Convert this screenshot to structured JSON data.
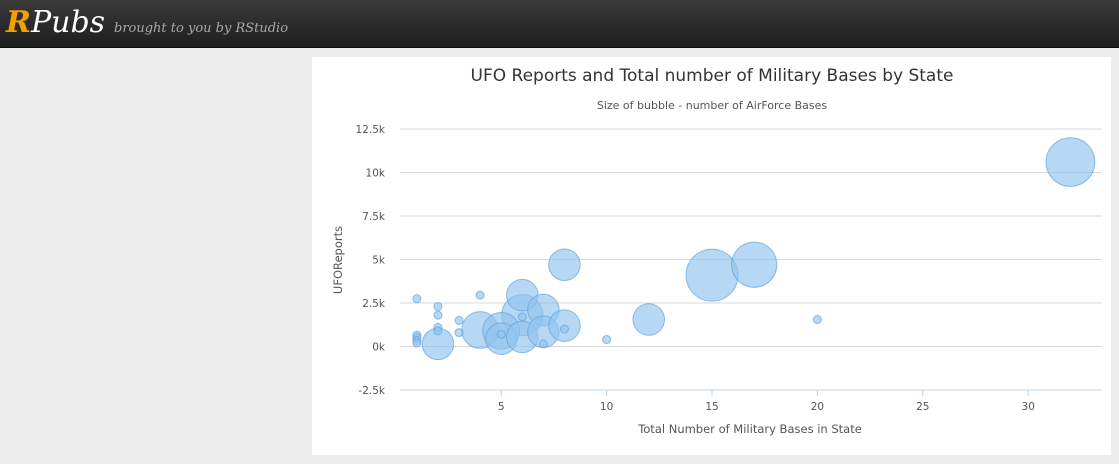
{
  "header": {
    "logo_r": "R",
    "logo_rest": "Pubs",
    "tagline": "brought to you by RStudio"
  },
  "colors": {
    "bubble_fill": "#90c3ee",
    "bubble_stroke": "#5fa2dd",
    "grid": "#d8d8d8",
    "axis": "#c0d0e0"
  },
  "chart_data": {
    "type": "scatter",
    "title": "UFO Reports and Total number of Military Bases by State",
    "subtitle": "Size of bubble - number of AirForce Bases",
    "xlabel": "Total Number of Military Bases in State",
    "ylabel": "UFOReports",
    "xlim": [
      0.2,
      33.5
    ],
    "ylim": [
      -2500,
      12500
    ],
    "xticks": [
      5,
      10,
      15,
      20,
      25,
      30
    ],
    "xtick_labels": [
      "5",
      "10",
      "15",
      "20",
      "25",
      "30"
    ],
    "yticks": [
      -2500,
      0,
      2500,
      5000,
      7500,
      10000,
      12500
    ],
    "ytick_labels": [
      "-2.5k",
      "0k",
      "2.5k",
      "5k",
      "7.5k",
      "10k",
      "12.5k"
    ],
    "grid": true,
    "legend": "none",
    "series": [
      {
        "points": [
          {
            "x": 32,
            "y": 10600,
            "z": 6
          },
          {
            "x": 15,
            "y": 4100,
            "z": 7
          },
          {
            "x": 17,
            "y": 4700,
            "z": 5
          },
          {
            "x": 8,
            "y": 4700,
            "z": 2
          },
          {
            "x": 6,
            "y": 2950,
            "z": 2
          },
          {
            "x": 6,
            "y": 1800,
            "z": 4
          },
          {
            "x": 7,
            "y": 2100,
            "z": 2
          },
          {
            "x": 4,
            "y": 950,
            "z": 3
          },
          {
            "x": 5,
            "y": 900,
            "z": 3
          },
          {
            "x": 5,
            "y": 450,
            "z": 2
          },
          {
            "x": 6,
            "y": 550,
            "z": 2
          },
          {
            "x": 7,
            "y": 850,
            "z": 2
          },
          {
            "x": 8,
            "y": 1200,
            "z": 2
          },
          {
            "x": 12,
            "y": 1550,
            "z": 2
          },
          {
            "x": 2,
            "y": 150,
            "z": 2
          },
          {
            "x": 1,
            "y": 2750,
            "z": 0
          },
          {
            "x": 2,
            "y": 2300,
            "z": 0
          },
          {
            "x": 2,
            "y": 1800,
            "z": 0
          },
          {
            "x": 2,
            "y": 1100,
            "z": 0
          },
          {
            "x": 2,
            "y": 900,
            "z": 0
          },
          {
            "x": 3,
            "y": 1500,
            "z": 0
          },
          {
            "x": 3,
            "y": 800,
            "z": 0
          },
          {
            "x": 4,
            "y": 2950,
            "z": 0
          },
          {
            "x": 1,
            "y": 650,
            "z": 0
          },
          {
            "x": 1,
            "y": 500,
            "z": 0
          },
          {
            "x": 1,
            "y": 350,
            "z": 0
          },
          {
            "x": 1,
            "y": 200,
            "z": 0
          },
          {
            "x": 5,
            "y": 700,
            "z": 0
          },
          {
            "x": 6,
            "y": 1700,
            "z": 0
          },
          {
            "x": 7,
            "y": 150,
            "z": 0
          },
          {
            "x": 8,
            "y": 1000,
            "z": 0
          },
          {
            "x": 10,
            "y": 400,
            "z": 0
          },
          {
            "x": 20,
            "y": 1550,
            "z": 0
          }
        ]
      }
    ]
  }
}
